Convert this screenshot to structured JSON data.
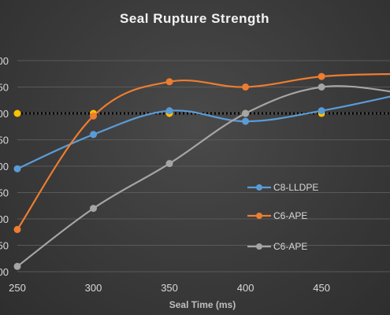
{
  "chart_data": {
    "type": "line",
    "title": "Seal Rupture Strength",
    "xlabel": "Seal Time (ms)",
    "ylabel": "",
    "x": [
      250,
      300,
      350,
      400,
      450,
      500
    ],
    "x_tick_labels": [
      "250",
      "300",
      "350",
      "400",
      "450"
    ],
    "y_tick_labels": [
      "00",
      "50",
      "00",
      "50",
      "00",
      "50",
      "00",
      "50",
      "00"
    ],
    "ylim": [
      0,
      8
    ],
    "xlim": [
      250,
      495
    ],
    "grid": "horizontal",
    "legend_position": "right",
    "series": [
      {
        "name": "C8-LLDPE",
        "color": "#5b9bd5",
        "values": [
          3.9,
          5.2,
          6.1,
          5.7,
          6.1,
          6.7
        ]
      },
      {
        "name": "C6-APE",
        "color": "#ed7d31",
        "values": [
          1.6,
          5.9,
          7.2,
          7.0,
          7.4,
          7.5
        ]
      },
      {
        "name": "C6-APE",
        "color": "#a5a5a5",
        "values": [
          0.2,
          2.4,
          4.1,
          6.0,
          7.0,
          6.8
        ]
      }
    ],
    "reference_line": {
      "value": 6.0,
      "color": "#000000",
      "style": "dotted",
      "marker_color": "#ffc000",
      "marker_x": [
        250,
        300,
        350,
        400,
        450
      ]
    }
  }
}
